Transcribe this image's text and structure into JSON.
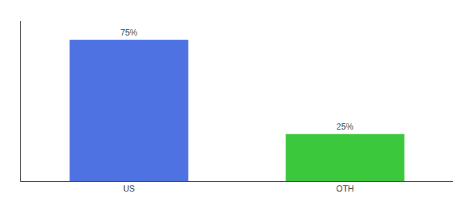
{
  "chart_data": {
    "type": "bar",
    "categories": [
      "US",
      "OTH"
    ],
    "values": [
      75,
      25
    ],
    "value_labels": [
      "75%",
      "25%"
    ],
    "data_labels": true,
    "colors": [
      "#4f72e3",
      "#3cc83c"
    ],
    "ylim": [
      0,
      85
    ],
    "grid": false,
    "tick_labels": "x"
  }
}
